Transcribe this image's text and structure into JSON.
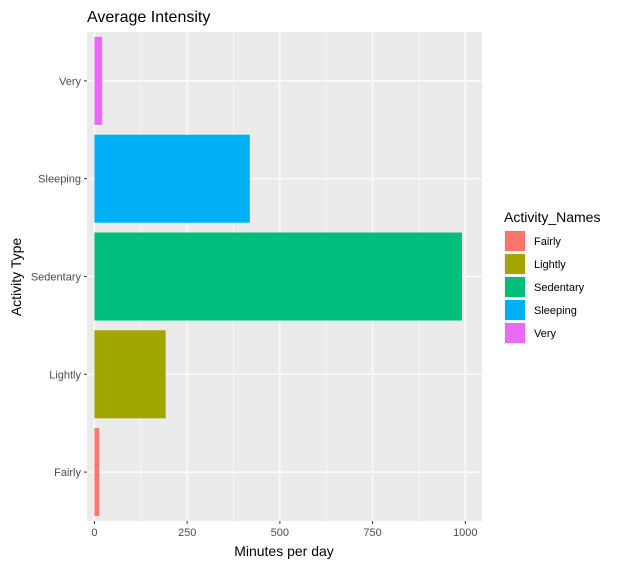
{
  "chart_data": {
    "type": "bar",
    "orientation": "horizontal",
    "title": "Average Intensity",
    "xlabel": "Minutes per day",
    "ylabel": "Activity Type",
    "categories": [
      "Fairly",
      "Lightly",
      "Sedentary",
      "Sleeping",
      "Very"
    ],
    "values": [
      13,
      192,
      991,
      419,
      21
    ],
    "xlim": [
      -20,
      1045
    ],
    "xticks": [
      0,
      250,
      500,
      750,
      1000
    ],
    "xtick_labels": [
      "0",
      "250",
      "500",
      "750",
      "1000"
    ],
    "colors": [
      "#F8766D",
      "#A3A500",
      "#00BF7D",
      "#00B0F6",
      "#E76BF3"
    ],
    "panel_background": "#EBEBEB",
    "grid": true,
    "legend": {
      "title": "Activity_Names",
      "position": "right",
      "entries": [
        "Fairly",
        "Lightly",
        "Sedentary",
        "Sleeping",
        "Very"
      ]
    }
  }
}
